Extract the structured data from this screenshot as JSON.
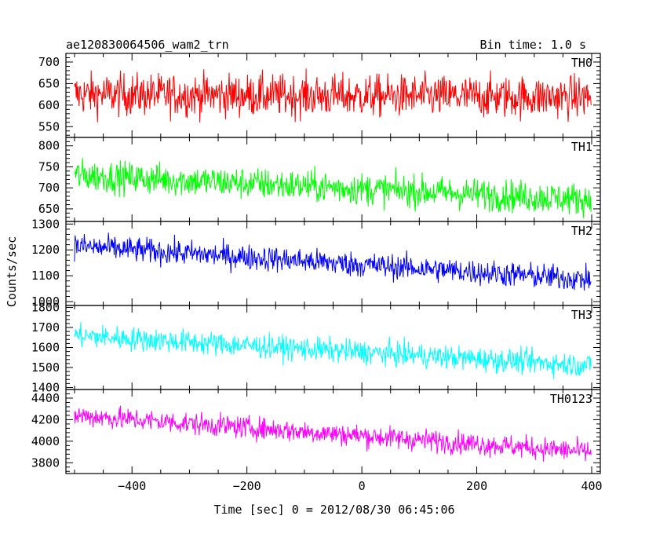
{
  "header": {
    "title": "ae120830064506_wam2_trn",
    "bin_time": "Bin time: 1.0 s"
  },
  "chart_data": {
    "type": "line",
    "xlabel": "Time [sec] 0 = 2012/08/30 06:45:06",
    "ylabel": "Counts/sec",
    "xlim": [
      -515,
      415
    ],
    "xticks": [
      -400,
      -200,
      0,
      200,
      400
    ],
    "xtick_labels": [
      "−400",
      "−200",
      "0",
      "200",
      "400"
    ],
    "bin_time_s": 1.0,
    "x_start": -500,
    "x_end": 399,
    "panels": [
      {
        "name": "TH0",
        "color": "#ff0000",
        "ylim": [
          525,
          720
        ],
        "yticks": [
          550,
          600,
          650,
          700
        ],
        "start_mean": 625,
        "end_mean": 618,
        "noise": 45
      },
      {
        "name": "TH1",
        "color": "#00ff00",
        "ylim": [
          620,
          820
        ],
        "yticks": [
          650,
          700,
          750,
          800
        ],
        "start_mean": 730,
        "end_mean": 672,
        "noise": 35
      },
      {
        "name": "TH2",
        "color": "#0000ff",
        "ylim": [
          985,
          1310
        ],
        "yticks": [
          1000,
          1100,
          1200,
          1300
        ],
        "start_mean": 1215,
        "end_mean": 1085,
        "noise": 45
      },
      {
        "name": "TH3",
        "color": "#00ffff",
        "ylim": [
          1390,
          1810
        ],
        "yticks": [
          1400,
          1500,
          1600,
          1700,
          1800
        ],
        "start_mean": 1660,
        "end_mean": 1510,
        "noise": 55
      },
      {
        "name": "TH0123",
        "color": "#ff00ff",
        "ylim": [
          3700,
          4480
        ],
        "yticks": [
          3800,
          4000,
          4200,
          4400
        ],
        "start_mean": 4240,
        "end_mean": 3900,
        "noise": 95
      }
    ]
  }
}
